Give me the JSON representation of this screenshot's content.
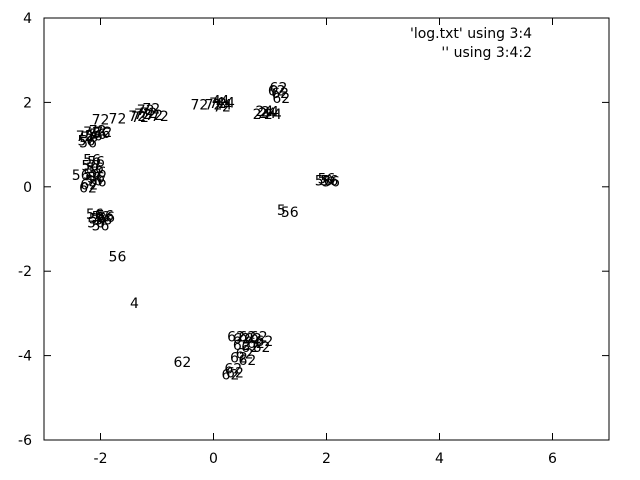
{
  "chart_data": {
    "type": "scatter",
    "title": "",
    "xlabel": "",
    "ylabel": "",
    "xlim": [
      -3,
      7
    ],
    "ylim": [
      -6,
      4
    ],
    "x_ticks": [
      -2,
      0,
      2,
      4,
      6
    ],
    "y_ticks": [
      -6,
      -4,
      -2,
      0,
      2,
      4
    ],
    "x_tick_labels": [
      "-2",
      "0",
      "2",
      "4",
      "6"
    ],
    "y_tick_labels": [
      "-6",
      "-4",
      "-2",
      "0",
      "2",
      "4"
    ],
    "grid": false,
    "legend_position": "top-right",
    "series": [
      {
        "name": "'log.txt' using 3:4",
        "style": "points",
        "points": []
      },
      {
        "name": "'' using 3:4:2",
        "style": "labels",
        "points": [
          {
            "x": -2.25,
            "y": 1.1,
            "label": "56"
          },
          {
            "x": -2.2,
            "y": 1.18,
            "label": "56"
          },
          {
            "x": -2.12,
            "y": 1.22,
            "label": "56"
          },
          {
            "x": -2.05,
            "y": 1.25,
            "label": "56"
          },
          {
            "x": -1.98,
            "y": 1.28,
            "label": "56"
          },
          {
            "x": -2.28,
            "y": 1.2,
            "label": "72"
          },
          {
            "x": -2.15,
            "y": 1.3,
            "label": "72"
          },
          {
            "x": -2.05,
            "y": 1.33,
            "label": "72"
          },
          {
            "x": -1.95,
            "y": 1.3,
            "label": "72"
          },
          {
            "x": -2.22,
            "y": 1.05,
            "label": "56"
          },
          {
            "x": -2.0,
            "y": 1.6,
            "label": "72"
          },
          {
            "x": -2.15,
            "y": 0.65,
            "label": "56"
          },
          {
            "x": -2.08,
            "y": 0.6,
            "label": "56"
          },
          {
            "x": -2.18,
            "y": 0.5,
            "label": "56"
          },
          {
            "x": -2.1,
            "y": 0.45,
            "label": "56"
          },
          {
            "x": -2.05,
            "y": 0.35,
            "label": "56"
          },
          {
            "x": -2.15,
            "y": 0.3,
            "label": "56"
          },
          {
            "x": -2.08,
            "y": 0.22,
            "label": "56"
          },
          {
            "x": -2.35,
            "y": 0.28,
            "label": "56"
          },
          {
            "x": -2.12,
            "y": 0.15,
            "label": "56"
          },
          {
            "x": -2.2,
            "y": 0.05,
            "label": "62"
          },
          {
            "x": -2.22,
            "y": -0.02,
            "label": "62"
          },
          {
            "x": -2.05,
            "y": 0.12,
            "label": "56"
          },
          {
            "x": -2.1,
            "y": -0.65,
            "label": "56"
          },
          {
            "x": -2.0,
            "y": -0.7,
            "label": "56"
          },
          {
            "x": -1.92,
            "y": -0.68,
            "label": "56"
          },
          {
            "x": -2.05,
            "y": -0.75,
            "label": "56"
          },
          {
            "x": -1.95,
            "y": -0.78,
            "label": "56"
          },
          {
            "x": -2.08,
            "y": -0.85,
            "label": "56"
          },
          {
            "x": -2.0,
            "y": -0.92,
            "label": "56"
          },
          {
            "x": -1.9,
            "y": -0.72,
            "label": "56"
          },
          {
            "x": -1.7,
            "y": -1.65,
            "label": "56"
          },
          {
            "x": -1.4,
            "y": -2.75,
            "label": "4"
          },
          {
            "x": -1.7,
            "y": 1.62,
            "label": "72"
          },
          {
            "x": -1.35,
            "y": 1.68,
            "label": "72"
          },
          {
            "x": -1.25,
            "y": 1.72,
            "label": "72"
          },
          {
            "x": -1.15,
            "y": 1.75,
            "label": "72"
          },
          {
            "x": -1.05,
            "y": 1.7,
            "label": "72"
          },
          {
            "x": -0.95,
            "y": 1.68,
            "label": "72"
          },
          {
            "x": -1.2,
            "y": 1.82,
            "label": "72"
          },
          {
            "x": -1.1,
            "y": 1.85,
            "label": "72"
          },
          {
            "x": -1.3,
            "y": 1.65,
            "label": "72"
          },
          {
            "x": -0.25,
            "y": 1.95,
            "label": "72"
          },
          {
            "x": 0.0,
            "y": 1.95,
            "label": "72"
          },
          {
            "x": 0.05,
            "y": 2.05,
            "label": "4"
          },
          {
            "x": 0.12,
            "y": 2.0,
            "label": "4"
          },
          {
            "x": 0.2,
            "y": 2.05,
            "label": "4"
          },
          {
            "x": 0.25,
            "y": 1.95,
            "label": "4"
          },
          {
            "x": 0.15,
            "y": 1.9,
            "label": "72"
          },
          {
            "x": 0.3,
            "y": 2.0,
            "label": "4"
          },
          {
            "x": 0.08,
            "y": 1.98,
            "label": "72"
          },
          {
            "x": 0.85,
            "y": 1.72,
            "label": "24"
          },
          {
            "x": 0.95,
            "y": 1.75,
            "label": "24"
          },
          {
            "x": 1.05,
            "y": 1.72,
            "label": "24"
          },
          {
            "x": 0.9,
            "y": 1.8,
            "label": "24"
          },
          {
            "x": 1.0,
            "y": 1.78,
            "label": "24"
          },
          {
            "x": 1.15,
            "y": 2.35,
            "label": "62"
          },
          {
            "x": 1.18,
            "y": 2.22,
            "label": "62"
          },
          {
            "x": 1.2,
            "y": 2.1,
            "label": "62"
          },
          {
            "x": 1.12,
            "y": 2.28,
            "label": "62"
          },
          {
            "x": 1.95,
            "y": 0.15,
            "label": "56"
          },
          {
            "x": 2.05,
            "y": 0.15,
            "label": "56"
          },
          {
            "x": 2.0,
            "y": 0.2,
            "label": "56"
          },
          {
            "x": 2.08,
            "y": 0.12,
            "label": "56"
          },
          {
            "x": 1.2,
            "y": -0.55,
            "label": "5"
          },
          {
            "x": 1.35,
            "y": -0.6,
            "label": "56"
          },
          {
            "x": -0.55,
            "y": -4.15,
            "label": "62"
          },
          {
            "x": 0.4,
            "y": -3.55,
            "label": "62"
          },
          {
            "x": 0.5,
            "y": -3.6,
            "label": "62"
          },
          {
            "x": 0.6,
            "y": -3.55,
            "label": "62"
          },
          {
            "x": 0.7,
            "y": -3.6,
            "label": "62"
          },
          {
            "x": 0.8,
            "y": -3.55,
            "label": "62"
          },
          {
            "x": 0.9,
            "y": -3.65,
            "label": "62"
          },
          {
            "x": 0.5,
            "y": -3.75,
            "label": "62"
          },
          {
            "x": 0.65,
            "y": -3.8,
            "label": "62"
          },
          {
            "x": 0.85,
            "y": -3.8,
            "label": "62"
          },
          {
            "x": 0.55,
            "y": -3.95,
            "label": "62"
          },
          {
            "x": 0.6,
            "y": -4.1,
            "label": "62"
          },
          {
            "x": 0.45,
            "y": -4.05,
            "label": "62"
          },
          {
            "x": 0.35,
            "y": -4.3,
            "label": "62"
          },
          {
            "x": 0.3,
            "y": -4.45,
            "label": "62"
          },
          {
            "x": 0.38,
            "y": -4.4,
            "label": "62"
          },
          {
            "x": 0.75,
            "y": -3.7,
            "label": "62"
          }
        ]
      }
    ]
  }
}
